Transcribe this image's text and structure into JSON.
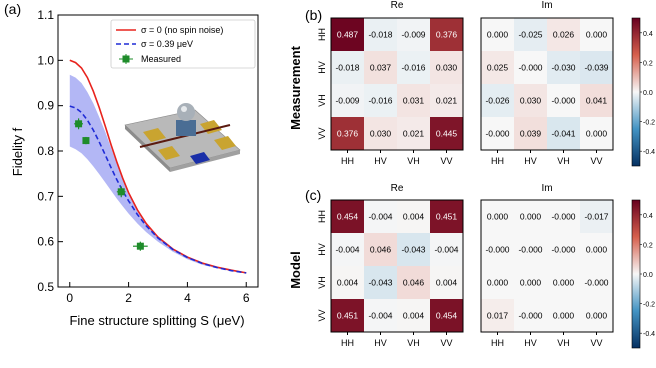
{
  "panel_labels": {
    "a": "(a)",
    "b": "(b)",
    "c": "(c)"
  },
  "row_titles": {
    "measurement": "Measurement",
    "model": "Model"
  },
  "chart_data": [
    {
      "type": "line",
      "panel": "(a)",
      "xlabel": "Fine structure splitting S (μeV)",
      "ylabel": "Fidelity f",
      "xlim": [
        -0.4,
        6.4
      ],
      "ylim": [
        0.5,
        1.1
      ],
      "xticks": [
        0,
        2,
        4,
        6
      ],
      "yticks": [
        0.5,
        0.6,
        0.7,
        0.8,
        0.9,
        1.0,
        1.1
      ],
      "legend_position": "top-right",
      "series": [
        {
          "name": "σ = 0 (no spin noise)",
          "style": "solid",
          "color": "#e8231d",
          "x": [
            0,
            0.2,
            0.4,
            0.6,
            0.8,
            1.0,
            1.2,
            1.4,
            1.6,
            1.8,
            2.0,
            2.3,
            2.6,
            3.0,
            3.5,
            4.0,
            4.5,
            5.0,
            5.5,
            6.0
          ],
          "y": [
            1.0,
            0.995,
            0.983,
            0.962,
            0.932,
            0.896,
            0.856,
            0.815,
            0.776,
            0.74,
            0.708,
            0.67,
            0.64,
            0.61,
            0.584,
            0.566,
            0.553,
            0.544,
            0.537,
            0.531
          ]
        },
        {
          "name": "σ = 0.39 μeV",
          "style": "dashed",
          "color": "#1f2bd6",
          "x": [
            0,
            0.2,
            0.4,
            0.6,
            0.8,
            1.0,
            1.2,
            1.4,
            1.6,
            1.8,
            2.0,
            2.3,
            2.6,
            3.0,
            3.5,
            4.0,
            4.5,
            5.0,
            5.5,
            6.0
          ],
          "y": [
            0.899,
            0.895,
            0.885,
            0.868,
            0.846,
            0.82,
            0.792,
            0.764,
            0.737,
            0.712,
            0.69,
            0.66,
            0.635,
            0.608,
            0.583,
            0.565,
            0.552,
            0.543,
            0.536,
            0.531
          ]
        },
        {
          "name": "Measured",
          "style": "markers",
          "color": "#1e8c2a",
          "x": [
            0.3,
            0.55,
            1.75,
            2.4
          ],
          "y": [
            0.86,
            0.823,
            0.71,
            0.59
          ],
          "xerr": [
            0.15,
            0.1,
            0.15,
            0.25
          ],
          "yerr": [
            0.012,
            0.008,
            0.012,
            0.01
          ]
        }
      ],
      "band": {
        "color": "#b3b7f5",
        "x": [
          0,
          0.2,
          0.4,
          0.6,
          0.8,
          1.0,
          1.2,
          1.4,
          1.6,
          1.8,
          2.0,
          2.3,
          2.6,
          3.0,
          3.5,
          4.0,
          4.5,
          5.0,
          5.5,
          6.0
        ],
        "upper": [
          0.968,
          0.962,
          0.95,
          0.93,
          0.905,
          0.875,
          0.843,
          0.808,
          0.772,
          0.738,
          0.708,
          0.67,
          0.64,
          0.61,
          0.584,
          0.566,
          0.553,
          0.544,
          0.537,
          0.531
        ],
        "lower": [
          0.81,
          0.804,
          0.795,
          0.782,
          0.766,
          0.749,
          0.731,
          0.713,
          0.695,
          0.678,
          0.662,
          0.64,
          0.621,
          0.6,
          0.578,
          0.561,
          0.549,
          0.541,
          0.535,
          0.53
        ]
      }
    },
    {
      "type": "heatmap",
      "panel": "(b)",
      "row_title": "Measurement",
      "sub_titles": [
        "Re",
        "Im"
      ],
      "basis": [
        "HH",
        "HV",
        "VH",
        "VV"
      ],
      "real": [
        [
          0.487,
          -0.018,
          -0.009,
          0.376
        ],
        [
          -0.018,
          0.037,
          -0.016,
          0.03
        ],
        [
          -0.009,
          -0.016,
          0.031,
          0.021
        ],
        [
          0.376,
          0.03,
          0.021,
          0.445
        ]
      ],
      "imag": [
        [
          0.0,
          -0.025,
          0.026,
          0.0
        ],
        [
          0.025,
          -0.0,
          -0.03,
          -0.039
        ],
        [
          -0.026,
          0.03,
          -0.0,
          0.041
        ],
        [
          -0.0,
          0.039,
          -0.041,
          0.0
        ]
      ],
      "colorbar_ticks": [
        0.4,
        0.2,
        0.0,
        -0.2,
        -0.4
      ],
      "colorbar_labels": [
        "0.4",
        "0.2",
        "0.0",
        "-0.2",
        "-0.4"
      ],
      "vlim": [
        -0.5,
        0.5
      ]
    },
    {
      "type": "heatmap",
      "panel": "(c)",
      "row_title": "Model",
      "sub_titles": [
        "Re",
        "Im"
      ],
      "basis": [
        "HH",
        "HV",
        "VH",
        "VV"
      ],
      "real": [
        [
          0.454,
          -0.004,
          0.004,
          0.451
        ],
        [
          -0.004,
          0.046,
          -0.043,
          -0.004
        ],
        [
          0.004,
          -0.043,
          0.046,
          0.004
        ],
        [
          0.451,
          -0.004,
          0.004,
          0.454
        ]
      ],
      "imag": [
        [
          0.0,
          0.0,
          -0.0,
          -0.017
        ],
        [
          -0.0,
          -0.0,
          -0.0,
          0.0
        ],
        [
          0.0,
          0.0,
          0.0,
          -0.0
        ],
        [
          0.017,
          -0.0,
          0.0,
          0.0
        ]
      ],
      "colorbar_ticks": [
        0.4,
        0.2,
        0.0,
        -0.2,
        -0.4
      ],
      "colorbar_labels": [
        "0.4",
        "0.2",
        "0.0",
        "-0.2",
        "-0.4"
      ],
      "vlim": [
        -0.5,
        0.5
      ]
    }
  ]
}
